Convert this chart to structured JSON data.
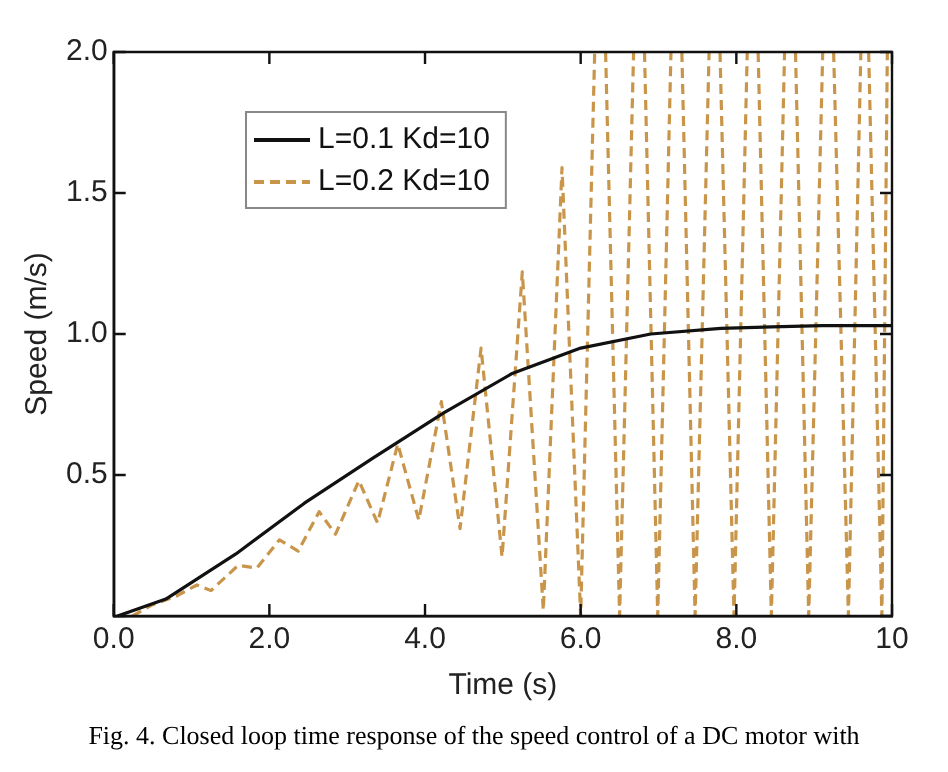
{
  "chart_data": {
    "type": "line",
    "xlabel": "Time (s)",
    "ylabel": "Speed (m/s)",
    "xlim": [
      0,
      10
    ],
    "ylim": [
      0,
      2
    ],
    "xticks": [
      {
        "value": 0,
        "label": "0.0"
      },
      {
        "value": 2,
        "label": "2.0"
      },
      {
        "value": 4,
        "label": "4.0"
      },
      {
        "value": 6,
        "label": "6.0"
      },
      {
        "value": 8,
        "label": "8.0"
      },
      10
    ],
    "yticks": [
      {
        "value": 0,
        "label": null
      },
      0.5,
      {
        "value": 1,
        "label": "1.0"
      },
      1.5,
      {
        "value": 2,
        "label": "2.0"
      }
    ],
    "grid": false,
    "legend": "top left",
    "line_style": "solid",
    "marker": "none",
    "series": [
      {
        "name": "L=0.1 Kd=10",
        "color": "#111111",
        "x": [
          0.05,
          0.67,
          1.57,
          2.45,
          3.33,
          4.24,
          5.12,
          6.0,
          6.9,
          7.8,
          9.1,
          10
        ],
        "values": [
          0,
          0.06,
          0.22,
          0.4,
          0.56,
          0.72,
          0.86,
          0.95,
          1.0,
          1.02,
          1.03,
          1.03
        ]
      },
      {
        "name": "L=0.2 Kd=10",
        "color": "#c8954a",
        "line_style": "dashed",
        "x": [
          0.24,
          0.5,
          0.8,
          1.07,
          1.25,
          1.6,
          1.84,
          2.13,
          2.37,
          2.64,
          2.85,
          3.15,
          3.39,
          3.65,
          3.92,
          4.21,
          4.45,
          4.72,
          4.99,
          5.25,
          5.52,
          5.76,
          6.0,
          6.18,
          6.25,
          6.32,
          6.5,
          6.68,
          6.75,
          6.82,
          6.99,
          7.16,
          7.23,
          7.3,
          7.47,
          7.65,
          7.72,
          7.79,
          7.97,
          8.14,
          8.21,
          8.28,
          8.45,
          8.62,
          8.69,
          8.76,
          8.93,
          9.11,
          9.18,
          9.25,
          9.44,
          9.6,
          9.65,
          9.7,
          9.87,
          9.94
        ],
        "values": [
          0,
          0.04,
          0.07,
          0.11,
          0.09,
          0.18,
          0.17,
          0.27,
          0.23,
          0.37,
          0.29,
          0.48,
          0.33,
          0.61,
          0.34,
          0.76,
          0.31,
          0.95,
          0.21,
          1.22,
          0.02,
          1.59,
          0,
          2,
          null,
          2,
          0,
          2,
          null,
          2,
          0,
          2,
          null,
          2,
          0,
          2,
          null,
          2,
          0,
          2,
          null,
          2,
          0,
          2,
          null,
          2,
          0,
          2,
          null,
          2,
          0,
          2,
          null,
          2,
          0,
          2
        ]
      }
    ],
    "annotations": [
      "Fig. 4. Closed loop time response of the speed control of a DC motor with"
    ]
  }
}
